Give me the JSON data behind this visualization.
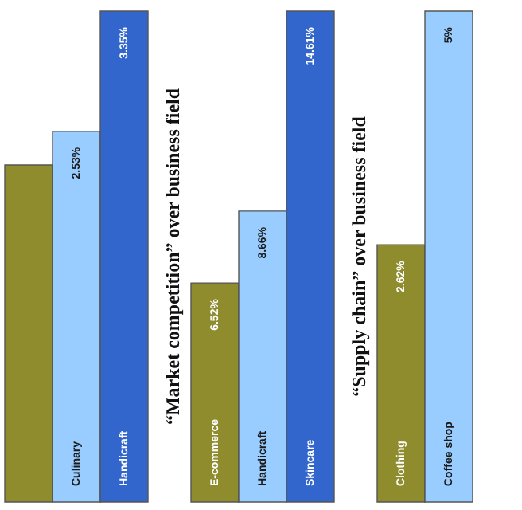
{
  "chart_data": [
    {
      "type": "bar",
      "categories": [
        null,
        "Culinary",
        "Handicraft"
      ],
      "values": [
        2.3,
        2.53,
        3.35
      ],
      "value_labels": [
        null,
        "2.53%",
        "3.35%"
      ],
      "colors": [
        "#8f8c2e",
        "#99ccff",
        "#3366cc"
      ]
    },
    {
      "type": "bar",
      "title": "“Market competition” over business field",
      "categories": [
        "E-commerce",
        "Handicraft",
        "Skincare"
      ],
      "values": [
        6.52,
        8.66,
        14.61
      ],
      "value_labels": [
        "6.52%",
        "8.66%",
        "14.61%"
      ],
      "colors": [
        "#8f8c2e",
        "#99ccff",
        "#3366cc"
      ]
    },
    {
      "type": "bar",
      "title": "“Supply chain” over business field",
      "categories": [
        "Clothing",
        "Coffee shop"
      ],
      "values": [
        2.62,
        5
      ],
      "value_labels": [
        "2.62%",
        "5%"
      ],
      "colors": [
        "#8f8c2e",
        "#99ccff"
      ]
    }
  ]
}
